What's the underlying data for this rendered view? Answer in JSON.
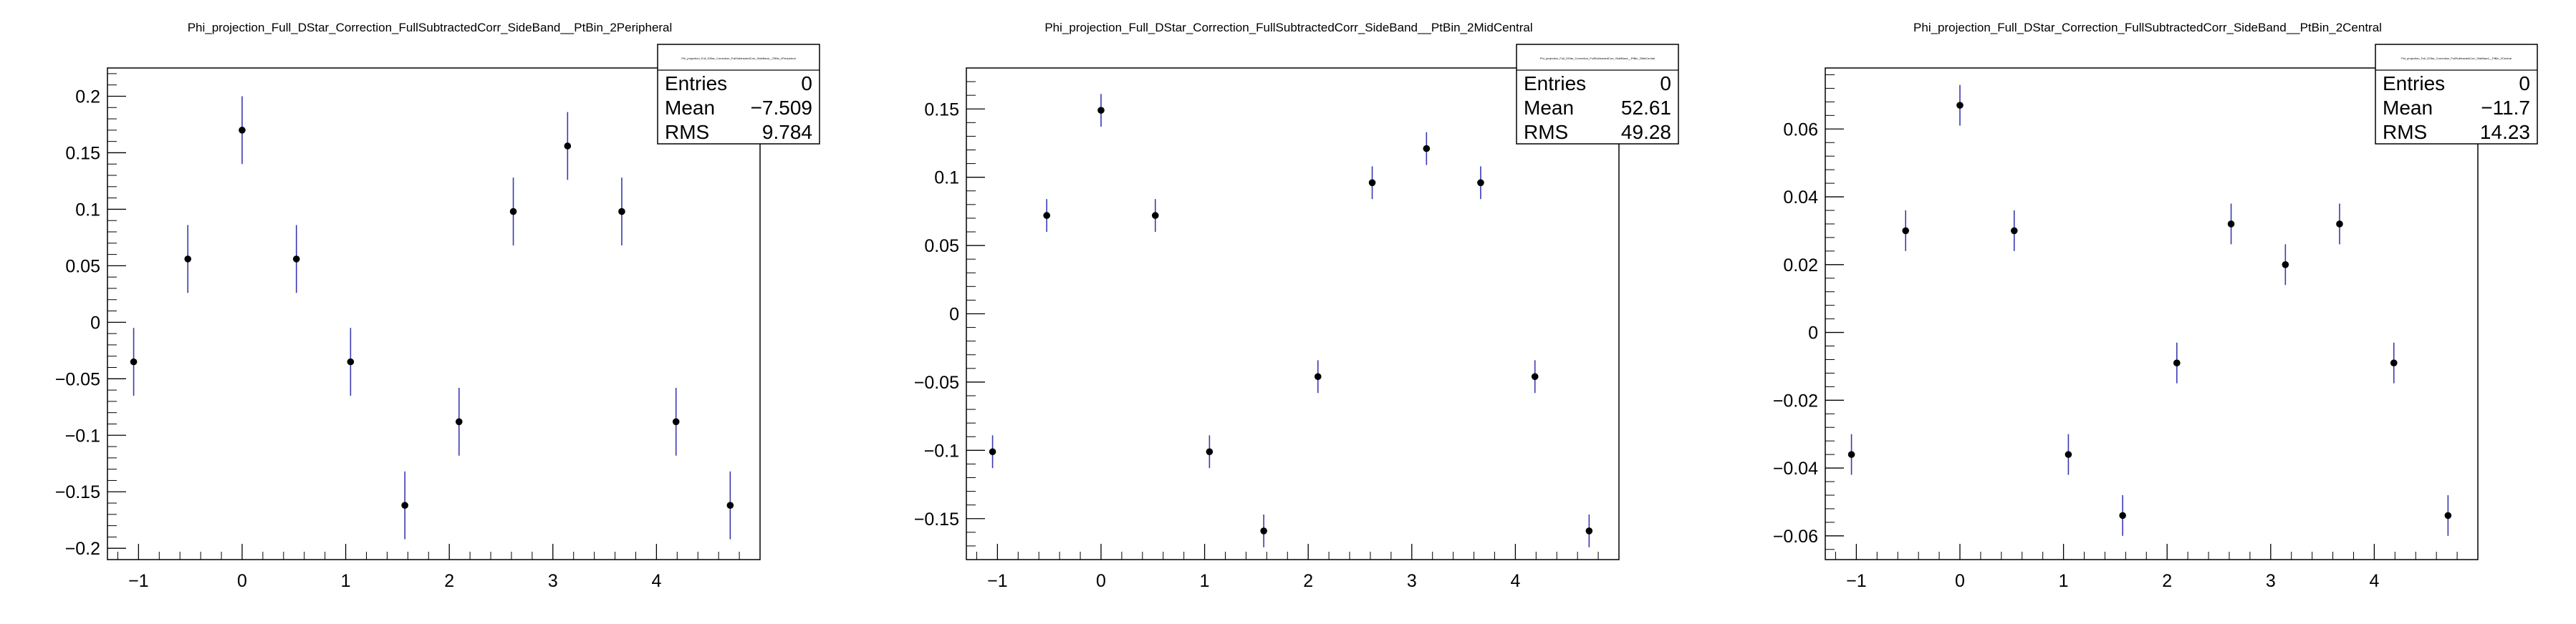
{
  "chart_data": [
    {
      "type": "scatter",
      "title": "Phi_projection_Full_DStar_Correction_FullSubtractedCorr_SideBand__PtBin_2Peripheral",
      "stats_box": {
        "header": "Phi_projection_Full_DStar_Correction_FullSubtractedCorr_SideBand__PtBin_2Peripheral",
        "rows": [
          {
            "label": "Entries",
            "value": "0"
          },
          {
            "label": "Mean",
            "value": "−7.509"
          },
          {
            "label": "RMS",
            "value": "9.784"
          }
        ]
      },
      "xlim": [
        -1.3,
        5.0
      ],
      "ylim": [
        -0.21,
        0.225
      ],
      "x_ticks": [
        -1,
        0,
        1,
        2,
        3,
        4
      ],
      "x_tick_labels": [
        "−1",
        "0",
        "1",
        "2",
        "3",
        "4"
      ],
      "y_ticks": [
        -0.2,
        -0.15,
        -0.1,
        -0.05,
        0,
        0.05,
        0.1,
        0.15,
        0.2
      ],
      "y_tick_labels": [
        "−0.2",
        "−0.15",
        "−0.1",
        "−0.05",
        "0",
        "0.05",
        "0.1",
        "0.15",
        "0.2"
      ],
      "x": [
        -1.047,
        -0.524,
        0.0,
        0.524,
        1.047,
        1.571,
        2.094,
        2.618,
        3.142,
        3.665,
        4.189,
        4.712
      ],
      "y": [
        -0.035,
        0.056,
        0.17,
        0.056,
        -0.035,
        -0.162,
        -0.088,
        0.098,
        0.156,
        0.098,
        -0.088,
        -0.162
      ],
      "yerr": [
        0.03,
        0.03,
        0.03,
        0.03,
        0.03,
        0.03,
        0.03,
        0.03,
        0.03,
        0.03,
        0.03,
        0.03
      ],
      "marker_color": "#000000",
      "error_color": "#3a3ab0",
      "grid": false
    },
    {
      "type": "scatter",
      "title": "Phi_projection_Full_DStar_Correction_FullSubtractedCorr_SideBand__PtBin_2MidCentral",
      "stats_box": {
        "header": "Phi_projection_Full_DStar_Correction_FullSubtractedCorr_SideBand__PtBin_2MidCentral",
        "rows": [
          {
            "label": "Entries",
            "value": "0"
          },
          {
            "label": "Mean",
            "value": "52.61"
          },
          {
            "label": "RMS",
            "value": "49.28"
          }
        ]
      },
      "xlim": [
        -1.3,
        5.0
      ],
      "ylim": [
        -0.18,
        0.18
      ],
      "x_ticks": [
        -1,
        0,
        1,
        2,
        3,
        4
      ],
      "x_tick_labels": [
        "−1",
        "0",
        "1",
        "2",
        "3",
        "4"
      ],
      "y_ticks": [
        -0.15,
        -0.1,
        -0.05,
        0,
        0.05,
        0.1,
        0.15
      ],
      "y_tick_labels": [
        "−0.15",
        "−0.1",
        "−0.05",
        "0",
        "0.05",
        "0.1",
        "0.15"
      ],
      "x": [
        -1.047,
        -0.524,
        0.0,
        0.524,
        1.047,
        1.571,
        2.094,
        2.618,
        3.142,
        3.665,
        4.189,
        4.712
      ],
      "y": [
        -0.101,
        0.072,
        0.149,
        0.072,
        -0.101,
        -0.159,
        -0.046,
        0.096,
        0.121,
        0.096,
        -0.046,
        -0.159
      ],
      "yerr": [
        0.012,
        0.012,
        0.012,
        0.012,
        0.012,
        0.012,
        0.012,
        0.012,
        0.012,
        0.012,
        0.012,
        0.012
      ],
      "marker_color": "#000000",
      "error_color": "#3a3ab0",
      "grid": false
    },
    {
      "type": "scatter",
      "title": "Phi_projection_Full_DStar_Correction_FullSubtractedCorr_SideBand__PtBin_2Central",
      "stats_box": {
        "header": "Phi_projection_Full_DStar_Correction_FullSubtractedCorr_SideBand__PtBin_2Central",
        "rows": [
          {
            "label": "Entries",
            "value": "0"
          },
          {
            "label": "Mean",
            "value": "−11.7"
          },
          {
            "label": "RMS",
            "value": "14.23"
          }
        ]
      },
      "xlim": [
        -1.3,
        5.0
      ],
      "ylim": [
        -0.067,
        0.078
      ],
      "x_ticks": [
        -1,
        0,
        1,
        2,
        3,
        4
      ],
      "x_tick_labels": [
        "−1",
        "0",
        "1",
        "2",
        "3",
        "4"
      ],
      "y_ticks": [
        -0.06,
        -0.04,
        -0.02,
        0,
        0.02,
        0.04,
        0.06
      ],
      "y_tick_labels": [
        "−0.06",
        "−0.04",
        "−0.02",
        "0",
        "0.02",
        "0.04",
        "0.06"
      ],
      "x": [
        -1.047,
        -0.524,
        0.0,
        0.524,
        1.047,
        1.571,
        2.094,
        2.618,
        3.142,
        3.665,
        4.189,
        4.712
      ],
      "y": [
        -0.036,
        0.03,
        0.067,
        0.03,
        -0.036,
        -0.054,
        -0.009,
        0.032,
        0.02,
        0.032,
        -0.009,
        -0.054
      ],
      "yerr": [
        0.006,
        0.006,
        0.006,
        0.006,
        0.006,
        0.006,
        0.006,
        0.006,
        0.006,
        0.006,
        0.006,
        0.006
      ],
      "marker_color": "#000000",
      "error_color": "#3a3ab0",
      "grid": false
    }
  ]
}
